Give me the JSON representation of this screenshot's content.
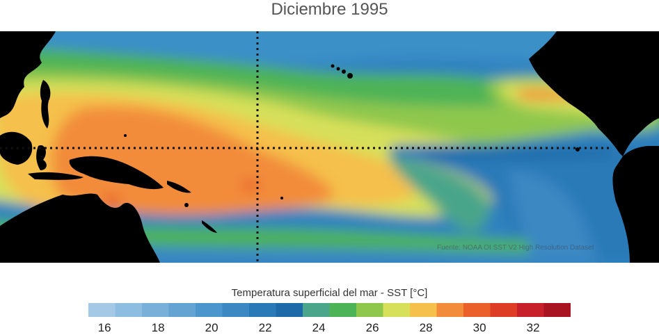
{
  "title": "Diciembre 1995",
  "source": "Fuente: NOAA OI SST V2 High Resolution Dataset",
  "colorbar": {
    "title": "Temperatura superficial del mar - SST  [°C]",
    "ticks": [
      "16",
      "18",
      "20",
      "22",
      "24",
      "26",
      "28",
      "30",
      "32"
    ],
    "colors": [
      "#a3c9e6",
      "#8dbde0",
      "#78b0da",
      "#63a4d3",
      "#4b96cc",
      "#3b88c3",
      "#2a7ab8",
      "#1e6aa8",
      "#4aa58a",
      "#4db357",
      "#8fc74d",
      "#d7e05a",
      "#f5c04c",
      "#f28c3a",
      "#ea5f2a",
      "#dc3d24",
      "#c8202a",
      "#a8141f"
    ]
  },
  "map": {
    "land_color": "#000000",
    "reference_lines": [
      "equator",
      "date-line"
    ]
  }
}
